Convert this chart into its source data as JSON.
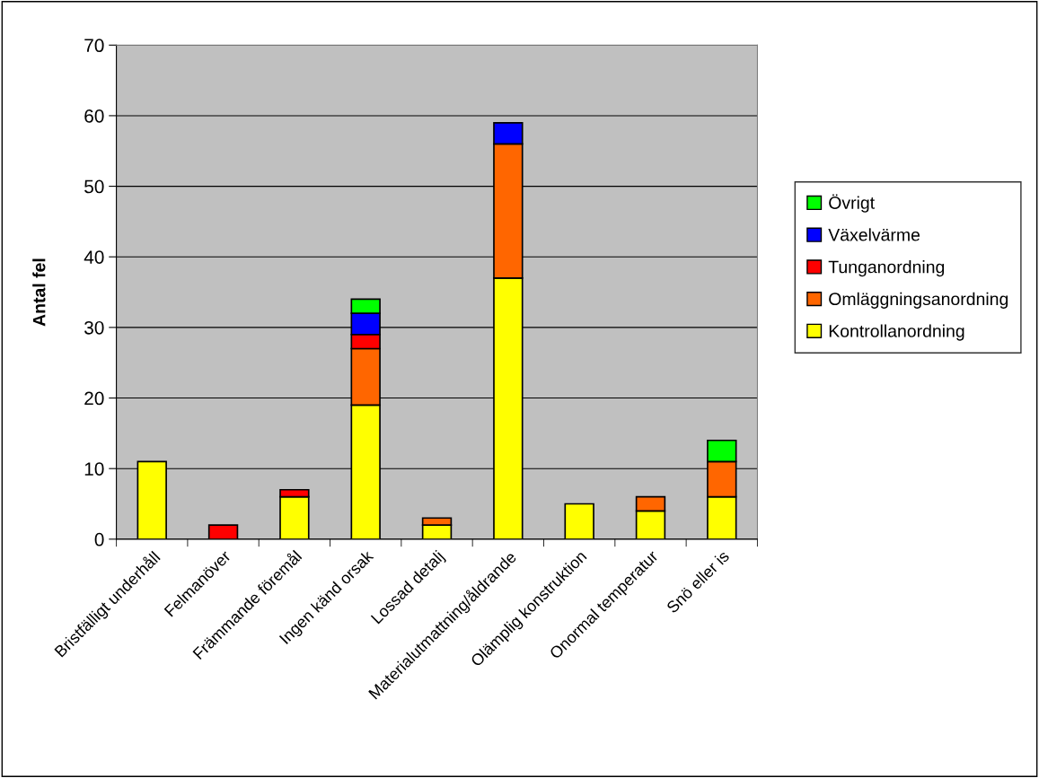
{
  "chart_data": {
    "type": "bar",
    "stacked": true,
    "ylabel": "Antal fel",
    "categories": [
      "Bristfälligt underhåll",
      "Felmanöver",
      "Främmande föremål",
      "Ingen känd orsak",
      "Lossad detalj",
      "Materialutmattning/åldrande",
      "Olämplig konstruktion",
      "Onormal temperatur",
      "Snö eller is"
    ],
    "series": [
      {
        "name": "Kontrollanordning",
        "color": "#ffff00",
        "values": [
          11,
          0,
          6,
          19,
          2,
          37,
          5,
          4,
          6
        ]
      },
      {
        "name": "Omläggningsanordning",
        "color": "#ff6600",
        "values": [
          0,
          0,
          0,
          8,
          1,
          19,
          0,
          2,
          5
        ]
      },
      {
        "name": "Tunganordning",
        "color": "#ff0000",
        "values": [
          0,
          2,
          1,
          2,
          0,
          0,
          0,
          0,
          0
        ]
      },
      {
        "name": "Växelvärme",
        "color": "#0000ff",
        "values": [
          0,
          0,
          0,
          3,
          0,
          3,
          0,
          0,
          0
        ]
      },
      {
        "name": "Övrigt",
        "color": "#00ff00",
        "values": [
          0,
          0,
          0,
          2,
          0,
          0,
          0,
          0,
          3
        ]
      }
    ],
    "ylim": [
      0,
      70
    ],
    "yticks": [
      0,
      10,
      20,
      30,
      40,
      50,
      60,
      70
    ],
    "grid": "y",
    "legend": "right"
  }
}
